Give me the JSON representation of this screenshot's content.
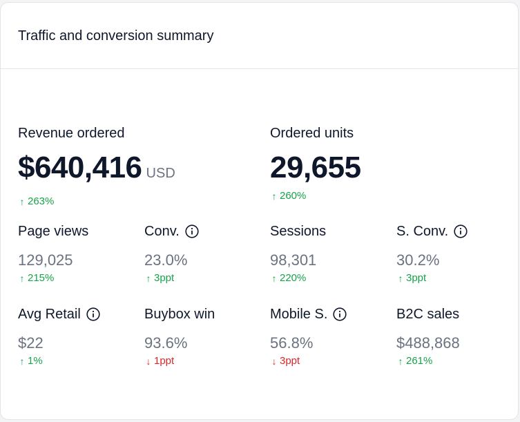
{
  "card": {
    "title": "Traffic and conversion summary"
  },
  "revenue": {
    "label": "Revenue ordered",
    "value": "$640,416",
    "currency": "USD",
    "change": "263%",
    "direction": "up"
  },
  "ordered_units": {
    "label": "Ordered units",
    "value": "29,655",
    "change": "260%",
    "direction": "up"
  },
  "page_views": {
    "label": "Page views",
    "value": "129,025",
    "change": "215%",
    "direction": "up"
  },
  "conv": {
    "label": "Conv.",
    "value": "23.0%",
    "change": "3ppt",
    "direction": "up"
  },
  "sessions": {
    "label": "Sessions",
    "value": "98,301",
    "change": "220%",
    "direction": "up"
  },
  "s_conv": {
    "label": "S. Conv.",
    "value": "30.2%",
    "change": "3ppt",
    "direction": "up"
  },
  "avg_retail": {
    "label": "Avg Retail",
    "value": "$22",
    "change": "1%",
    "direction": "up"
  },
  "buybox_win": {
    "label": "Buybox win",
    "value": "93.6%",
    "change": "1ppt",
    "direction": "down"
  },
  "mobile_s": {
    "label": "Mobile S.",
    "value": "56.8%",
    "change": "3ppt",
    "direction": "down"
  },
  "b2c_sales": {
    "label": "B2C sales",
    "value": "$488,868",
    "change": "261%",
    "direction": "up"
  },
  "icons": {
    "up": "up-arrow-icon",
    "down": "down-arrow-icon",
    "info": "info-icon"
  },
  "colors": {
    "up": "#16a34a",
    "down": "#dc2626",
    "text": "#0f172a",
    "muted": "#6b7280"
  }
}
